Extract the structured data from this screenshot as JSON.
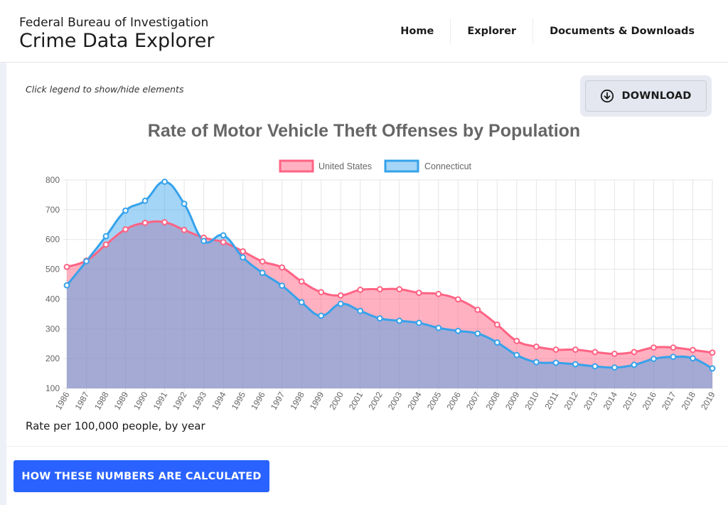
{
  "header": {
    "agency": "Federal Bureau of Investigation",
    "title": "Crime Data Explorer",
    "nav": [
      {
        "label": "Home"
      },
      {
        "label": "Explorer"
      },
      {
        "label": "Documents & Downloads"
      }
    ]
  },
  "controls": {
    "hint": "Click legend to show/hide elements",
    "download_label": "DOWNLOAD",
    "download_icon": "download-circle-icon"
  },
  "footnote": "Rate per 100,000 people, by year",
  "calc_button_label": "HOW THESE NUMBERS ARE CALCULATED",
  "chart_data": {
    "type": "area",
    "title": "Rate of Motor Vehicle Theft Offenses by Population",
    "xlabel": "",
    "ylabel": "",
    "x": [
      "1986",
      "1987",
      "1988",
      "1989",
      "1990",
      "1991",
      "1992",
      "1993",
      "1994",
      "1995",
      "1996",
      "1997",
      "1998",
      "1999",
      "2000",
      "2001",
      "2002",
      "2003",
      "2004",
      "2005",
      "2006",
      "2007",
      "2008",
      "2009",
      "2010",
      "2011",
      "2012",
      "2013",
      "2014",
      "2015",
      "2016",
      "2017",
      "2018",
      "2019"
    ],
    "ylim": [
      100,
      800
    ],
    "yticks": [
      100,
      200,
      300,
      400,
      500,
      600,
      700,
      800
    ],
    "grid": true,
    "legend_position": "top",
    "series": [
      {
        "name": "United States",
        "color": "#ff6384",
        "fill": "rgba(255, 99, 132, 0.5)",
        "values": [
          508,
          529,
          583,
          634,
          656,
          658,
          632,
          606,
          591,
          560,
          526,
          506,
          459,
          423,
          412,
          431,
          433,
          433,
          421,
          417,
          399,
          364,
          314,
          259,
          240,
          230,
          230,
          222,
          216,
          222,
          237,
          237,
          229,
          220
        ]
      },
      {
        "name": "Connecticut",
        "color": "#36a2eb",
        "fill": "rgba(54, 162, 235, 0.45)",
        "values": [
          446,
          527,
          611,
          697,
          730,
          794,
          720,
          595,
          614,
          540,
          488,
          445,
          389,
          344,
          384,
          360,
          335,
          327,
          320,
          303,
          293,
          284,
          254,
          212,
          188,
          186,
          181,
          174,
          170,
          179,
          199,
          206,
          201,
          167
        ]
      }
    ]
  }
}
